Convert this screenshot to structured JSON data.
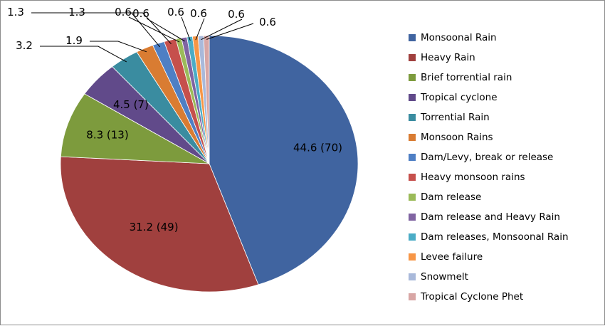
{
  "chart_data": {
    "type": "pie",
    "start_angle_deg": 0,
    "direction": "clockwise",
    "legend_position": "right",
    "slices": [
      {
        "name": "Monsoonal Rain",
        "value": 44.6,
        "label": "44.6 (70)",
        "color": "#4064A0"
      },
      {
        "name": "Heavy Rain",
        "value": 31.2,
        "label": "31.2 (49)",
        "color": "#A0403E"
      },
      {
        "name": "Brief torrential rain",
        "value": 8.3,
        "label": "8.3 (13)",
        "color": "#7D9B3D"
      },
      {
        "name": "Tropical cyclone",
        "value": 4.5,
        "label": "4.5 (7)",
        "color": "#614A8A"
      },
      {
        "name": "Torrential Rain",
        "value": 3.2,
        "label": "3.2",
        "color": "#3A8CA0"
      },
      {
        "name": "Monsoon Rains",
        "value": 1.9,
        "label": "1.9",
        "color": "#D97C32"
      },
      {
        "name": "Dam/Levy, break or release",
        "value": 1.3,
        "label": "1.3",
        "color": "#4E7FC4"
      },
      {
        "name": "Heavy monsoon rains",
        "value": 1.3,
        "label": "1.3",
        "color": "#C6504C"
      },
      {
        "name": "Dam release",
        "value": 0.6,
        "label": "0.6",
        "color": "#9BBB59"
      },
      {
        "name": "Dam release and Heavy Rain",
        "value": 0.6,
        "label": "0.6",
        "color": "#8064A2"
      },
      {
        "name": "Dam releases, Monsoonal Rain",
        "value": 0.6,
        "label": "0.6",
        "color": "#4BACC6"
      },
      {
        "name": "Levee failure",
        "value": 0.6,
        "label": "0.6",
        "color": "#F79646"
      },
      {
        "name": "Snowmelt",
        "value": 0.6,
        "label": "0.6",
        "color": "#A9B9DA"
      },
      {
        "name": "Tropical Cyclone Phet",
        "value": 0.6,
        "label": "0.6",
        "color": "#D8A6A5"
      }
    ]
  }
}
